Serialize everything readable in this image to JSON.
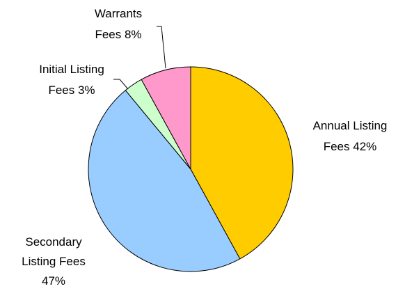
{
  "chart_data": {
    "type": "pie",
    "categories": [
      "Annual Listing Fees",
      "Secondary Listing Fees",
      "Initial Listing Fees",
      "Warrants Fees"
    ],
    "values": [
      42,
      47,
      3,
      8
    ],
    "value_labels": [
      "42%",
      "47%",
      "3%",
      "8%"
    ],
    "colors": [
      "#ffcc00",
      "#99ccff",
      "#ccffcc",
      "#ff99cc"
    ]
  }
}
